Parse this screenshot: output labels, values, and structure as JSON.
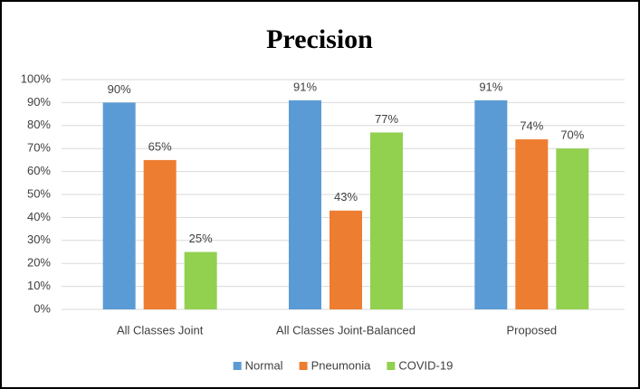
{
  "chart_data": {
    "type": "bar",
    "title": "Precision",
    "categories": [
      "All Classes Joint",
      "All Classes Joint-Balanced",
      "Proposed"
    ],
    "series": [
      {
        "name": "Normal",
        "color": "#5b9bd5",
        "values": [
          90,
          91,
          91
        ],
        "value_labels": [
          "90%",
          "91%",
          "91%"
        ]
      },
      {
        "name": "Pneumonia",
        "color": "#ed7d31",
        "values": [
          65,
          43,
          74
        ],
        "value_labels": [
          "65%",
          "43%",
          "74%"
        ]
      },
      {
        "name": "COVID-19",
        "color": "#92d050",
        "values": [
          25,
          77,
          70
        ],
        "value_labels": [
          "25%",
          "77%",
          "70%"
        ]
      }
    ],
    "ylim": [
      0,
      100
    ],
    "yticks": [
      {
        "value": 0,
        "label": "0%"
      },
      {
        "value": 10,
        "label": "10%"
      },
      {
        "value": 20,
        "label": "20%"
      },
      {
        "value": 30,
        "label": "30%"
      },
      {
        "value": 40,
        "label": "40%"
      },
      {
        "value": 50,
        "label": "50%"
      },
      {
        "value": 60,
        "label": "60%"
      },
      {
        "value": 70,
        "label": "70%"
      },
      {
        "value": 80,
        "label": "80%"
      },
      {
        "value": 90,
        "label": "90%"
      },
      {
        "value": 100,
        "label": "100%"
      }
    ],
    "grid": true,
    "legend": "bottom"
  }
}
